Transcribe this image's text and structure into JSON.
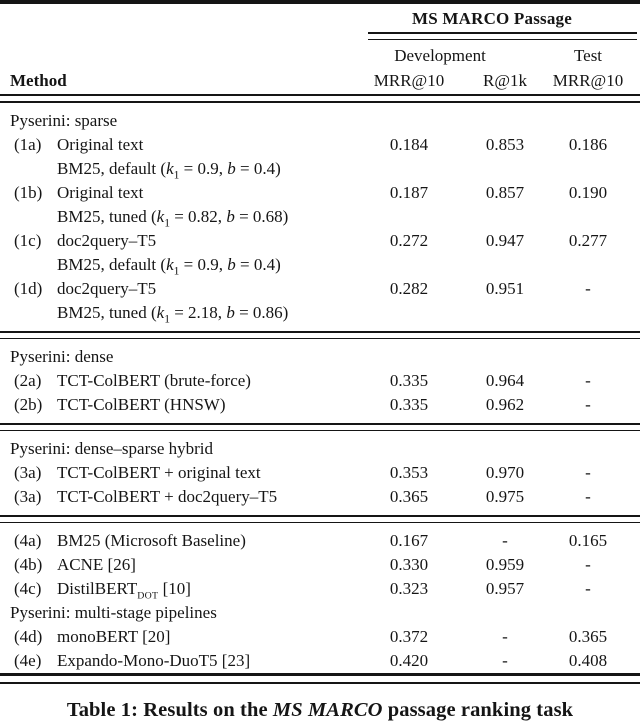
{
  "header": {
    "span_title": "MS MARCO Passage",
    "group_dev": "Development",
    "group_test": "Test",
    "method_label": "Method",
    "col_dev_mrr": "MRR@10",
    "col_dev_r1k": "R@1k",
    "col_test_mrr": "MRR@10"
  },
  "sections": [
    {
      "heading": "Pyserini: sparse",
      "rule_after": true,
      "rows": [
        {
          "id": "(1a)",
          "method": "Original text",
          "sub_html": "BM25, default (<i>k</i><sub>1</sub> = 0.9, <i>b</i> = 0.4)",
          "dev_mrr": "0.184",
          "dev_r1k": "0.853",
          "test_mrr": "0.186"
        },
        {
          "id": "(1b)",
          "method": "Original text",
          "sub_html": "BM25, tuned (<i>k</i><sub>1</sub> = 0.82, <i>b</i> = 0.68)",
          "dev_mrr": "0.187",
          "dev_r1k": "0.857",
          "test_mrr": "0.190"
        },
        {
          "id": "(1c)",
          "method": "doc2query–T5",
          "sub_html": "BM25, default (<i>k</i><sub>1</sub> = 0.9, <i>b</i> = 0.4)",
          "dev_mrr": "0.272",
          "dev_r1k": "0.947",
          "test_mrr": "0.277"
        },
        {
          "id": "(1d)",
          "method": "doc2query–T5",
          "sub_html": "BM25, tuned (<i>k</i><sub>1</sub> = 2.18, <i>b</i> = 0.86)",
          "dev_mrr": "0.282",
          "dev_r1k": "0.951",
          "test_mrr": "-"
        }
      ]
    },
    {
      "heading": "Pyserini: dense",
      "rule_after": true,
      "rows": [
        {
          "id": "(2a)",
          "method": "TCT-ColBERT (brute-force)",
          "dev_mrr": "0.335",
          "dev_r1k": "0.964",
          "test_mrr": "-"
        },
        {
          "id": "(2b)",
          "method": "TCT-ColBERT (HNSW)",
          "dev_mrr": "0.335",
          "dev_r1k": "0.962",
          "test_mrr": "-"
        }
      ]
    },
    {
      "heading": "Pyserini: dense–sparse hybrid",
      "rule_after": true,
      "rows": [
        {
          "id": "(3a)",
          "method": "TCT-ColBERT + original text",
          "dev_mrr": "0.353",
          "dev_r1k": "0.970",
          "test_mrr": "-"
        },
        {
          "id": "(3a)",
          "method": "TCT-ColBERT + doc2query–T5",
          "dev_mrr": "0.365",
          "dev_r1k": "0.975",
          "test_mrr": "-"
        }
      ]
    },
    {
      "heading": null,
      "rule_after": false,
      "rows": [
        {
          "id": "(4a)",
          "method": "BM25 (Microsoft Baseline)",
          "dev_mrr": "0.167",
          "dev_r1k": "-",
          "test_mrr": "0.165"
        },
        {
          "id": "(4b)",
          "method": "ACNE [26]",
          "dev_mrr": "0.330",
          "dev_r1k": "0.959",
          "test_mrr": "-"
        },
        {
          "id": "(4c)",
          "method_html": "DistilBERT<sub class=\"sc\">DOT</sub> [10]",
          "method": "DistilBERT DOT [10]",
          "dev_mrr": "0.323",
          "dev_r1k": "0.957",
          "test_mrr": "-"
        }
      ]
    },
    {
      "heading": "Pyserini: multi-stage pipelines",
      "rule_after": false,
      "rows": [
        {
          "id": "(4d)",
          "method": "monoBERT [20]",
          "dev_mrr": "0.372",
          "dev_r1k": "-",
          "test_mrr": "0.365"
        },
        {
          "id": "(4e)",
          "method": "Expando-Mono-DuoT5 [23]",
          "dev_mrr": "0.420",
          "dev_r1k": "-",
          "test_mrr": "0.408"
        }
      ]
    }
  ],
  "caption_html": "Table 1: Results on the <i>MS MARCO</i> passage ranking task",
  "colors": {
    "text": "#151515",
    "background": "#ffffff",
    "rule": "#151515"
  }
}
